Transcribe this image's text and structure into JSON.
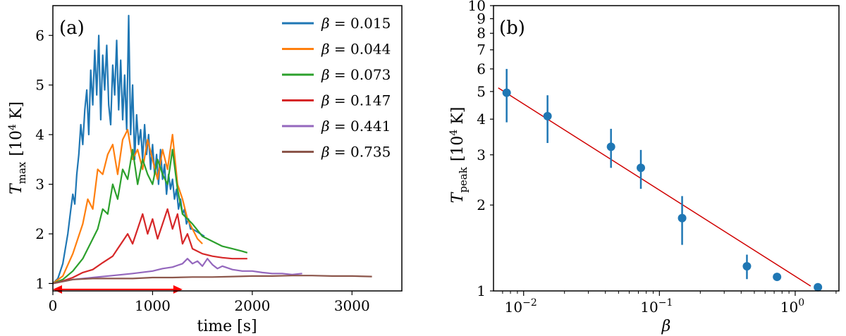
{
  "chart_data": [
    {
      "type": "line",
      "panel_label": "(a)",
      "xlabel": "time [s]",
      "ylabel_main": "T",
      "ylabel_sub": "max",
      "ylabel_units": "[10",
      "ylabel_exp": "4",
      "ylabel_units_end": " K]",
      "xlim": [
        0,
        3500
      ],
      "ylim": [
        0.85,
        6.6
      ],
      "xticks": [
        0,
        1000,
        2000,
        3000
      ],
      "xtick_labels": [
        "0",
        "1000",
        "2000",
        "3000"
      ],
      "yticks": [
        1,
        2,
        3,
        4,
        5,
        6
      ],
      "ytick_labels": [
        "1",
        "2",
        "3",
        "4",
        "5",
        "6"
      ],
      "legend_position": "top-right",
      "series": [
        {
          "name": "β = 0.015",
          "symbol": "β",
          "value_label": " = 0.015",
          "color": "#1f77b4",
          "x": [
            0,
            50,
            100,
            150,
            180,
            200,
            220,
            240,
            260,
            280,
            300,
            320,
            340,
            360,
            380,
            400,
            420,
            440,
            460,
            480,
            500,
            520,
            540,
            560,
            580,
            600,
            620,
            640,
            660,
            680,
            700,
            720,
            740,
            760,
            780,
            800,
            820,
            840,
            860,
            880,
            900,
            920,
            940,
            960,
            980,
            1000,
            1020,
            1040,
            1060,
            1080,
            1100,
            1120,
            1140,
            1160,
            1180,
            1200,
            1220,
            1240,
            1260,
            1280,
            1300,
            1320,
            1340,
            1360,
            1380,
            1400,
            1440,
            1480,
            1520
          ],
          "y": [
            1.0,
            1.1,
            1.4,
            2.0,
            2.5,
            2.8,
            2.6,
            3.2,
            3.6,
            4.2,
            3.8,
            4.5,
            4.9,
            4.0,
            5.3,
            4.6,
            5.7,
            4.8,
            6.0,
            4.3,
            5.6,
            4.9,
            5.8,
            4.6,
            4.2,
            5.4,
            4.8,
            5.9,
            4.5,
            5.5,
            4.3,
            5.2,
            4.1,
            6.4,
            4.0,
            5.0,
            3.5,
            4.4,
            3.8,
            4.1,
            3.5,
            4.2,
            3.6,
            4.0,
            3.3,
            3.8,
            3.2,
            3.6,
            3.0,
            3.7,
            3.1,
            3.4,
            2.8,
            3.2,
            2.9,
            3.1,
            2.7,
            2.9,
            2.5,
            2.7,
            2.4,
            2.5,
            2.2,
            2.3,
            2.1,
            2.1,
            2.05,
            2.0,
            1.95
          ]
        },
        {
          "name": "β = 0.044",
          "symbol": "β",
          "value_label": " = 0.044",
          "color": "#ff7f0e",
          "x": [
            0,
            100,
            200,
            300,
            350,
            400,
            450,
            500,
            550,
            600,
            650,
            700,
            750,
            800,
            850,
            900,
            950,
            1000,
            1050,
            1100,
            1150,
            1200,
            1250,
            1300,
            1350,
            1400,
            1450,
            1500
          ],
          "y": [
            1.0,
            1.15,
            1.6,
            2.2,
            2.7,
            2.5,
            3.3,
            3.2,
            3.6,
            3.8,
            3.2,
            3.9,
            4.1,
            3.5,
            3.7,
            3.3,
            3.9,
            3.5,
            3.1,
            3.7,
            3.3,
            4.0,
            3.0,
            2.7,
            2.3,
            2.1,
            1.9,
            1.8
          ]
        },
        {
          "name": "β = 0.073",
          "symbol": "β",
          "value_label": " = 0.073",
          "color": "#2ca02c",
          "x": [
            0,
            100,
            200,
            300,
            400,
            450,
            500,
            550,
            600,
            650,
            700,
            750,
            800,
            850,
            900,
            950,
            1000,
            1050,
            1100,
            1150,
            1200,
            1250,
            1300,
            1400,
            1500,
            1600,
            1700,
            1800,
            1900,
            1950
          ],
          "y": [
            1.0,
            1.08,
            1.25,
            1.5,
            1.9,
            2.1,
            2.5,
            2.4,
            3.0,
            2.7,
            3.3,
            3.1,
            3.7,
            3.0,
            3.5,
            3.2,
            3.0,
            3.5,
            3.2,
            3.0,
            3.7,
            2.9,
            2.4,
            2.2,
            1.95,
            1.85,
            1.75,
            1.7,
            1.65,
            1.62
          ]
        },
        {
          "name": "β = 0.147",
          "symbol": "β",
          "value_label": " = 0.147",
          "color": "#d62728",
          "x": [
            0,
            100,
            200,
            300,
            400,
            500,
            600,
            650,
            700,
            750,
            800,
            850,
            900,
            950,
            1000,
            1050,
            1100,
            1150,
            1200,
            1250,
            1300,
            1350,
            1400,
            1500,
            1600,
            1700,
            1800,
            1900,
            1950
          ],
          "y": [
            1.0,
            1.05,
            1.12,
            1.22,
            1.28,
            1.42,
            1.55,
            1.7,
            1.85,
            2.0,
            1.8,
            2.1,
            2.4,
            2.0,
            2.3,
            1.9,
            2.2,
            2.5,
            2.1,
            2.4,
            1.8,
            2.0,
            1.7,
            1.6,
            1.55,
            1.52,
            1.5,
            1.5,
            1.5
          ]
        },
        {
          "name": "β = 0.441",
          "symbol": "β",
          "value_label": " = 0.441",
          "color": "#9467bd",
          "x": [
            0,
            200,
            400,
            600,
            800,
            1000,
            1100,
            1200,
            1300,
            1350,
            1400,
            1450,
            1500,
            1550,
            1600,
            1650,
            1700,
            1800,
            1900,
            2000,
            2100,
            2200,
            2300,
            2400,
            2500
          ],
          "y": [
            1.0,
            1.08,
            1.12,
            1.16,
            1.2,
            1.25,
            1.3,
            1.33,
            1.4,
            1.5,
            1.4,
            1.45,
            1.35,
            1.5,
            1.38,
            1.3,
            1.35,
            1.28,
            1.25,
            1.25,
            1.22,
            1.2,
            1.2,
            1.18,
            1.2
          ]
        },
        {
          "name": "β = 0.735",
          "symbol": "β",
          "value_label": " = 0.735",
          "color": "#8c564b",
          "x": [
            0,
            200,
            400,
            600,
            800,
            1000,
            1200,
            1400,
            1600,
            1800,
            2000,
            2200,
            2400,
            2600,
            2800,
            3000,
            3200
          ],
          "y": [
            1.0,
            1.08,
            1.1,
            1.1,
            1.1,
            1.12,
            1.12,
            1.13,
            1.13,
            1.14,
            1.15,
            1.15,
            1.16,
            1.16,
            1.15,
            1.15,
            1.14
          ]
        }
      ],
      "annotation": {
        "type": "double-arrow",
        "x_start": 0,
        "x_end": 1300,
        "y": 0.88,
        "color": "#ff0000"
      }
    },
    {
      "type": "scatter",
      "panel_label": "(b)",
      "xlabel": "β",
      "ylabel_main": "T",
      "ylabel_sub": "peak",
      "ylabel_units": "[10",
      "ylabel_exp": "4",
      "ylabel_units_end": " K]",
      "xscale": "log",
      "yscale": "log",
      "xlim": [
        0.006,
        2.1
      ],
      "ylim": [
        1.0,
        10.0
      ],
      "xtick_labels": [
        {
          "base": "10",
          "exp": "−2",
          "value": 0.01
        },
        {
          "base": "10",
          "exp": "−1",
          "value": 0.1
        },
        {
          "base": "10",
          "exp": "0",
          "value": 1
        }
      ],
      "yticks": [
        1,
        2,
        3,
        4,
        5,
        6,
        7,
        8,
        9,
        10
      ],
      "ytick_labels": [
        "1",
        "2",
        "3",
        "4",
        "5",
        "6",
        "7",
        "8",
        "9",
        "10"
      ],
      "marker_color": "#1f77b4",
      "fit_color": "#d00000",
      "fit_line": {
        "x": [
          0.0065,
          1.3
        ],
        "y": [
          5.15,
          1.04
        ]
      },
      "points": [
        {
          "x": 0.0075,
          "y": 4.95,
          "yerr_low": 3.9,
          "yerr_high": 6.0
        },
        {
          "x": 0.015,
          "y": 4.1,
          "yerr_low": 3.3,
          "yerr_high": 4.85
        },
        {
          "x": 0.044,
          "y": 3.2,
          "yerr_low": 2.7,
          "yerr_high": 3.7
        },
        {
          "x": 0.073,
          "y": 2.7,
          "yerr_low": 2.28,
          "yerr_high": 3.12
        },
        {
          "x": 0.147,
          "y": 1.8,
          "yerr_low": 1.45,
          "yerr_high": 2.15
        },
        {
          "x": 0.441,
          "y": 1.22,
          "yerr_low": 1.1,
          "yerr_high": 1.34
        },
        {
          "x": 0.735,
          "y": 1.12
        },
        {
          "x": 1.47,
          "y": 1.03
        }
      ]
    }
  ]
}
